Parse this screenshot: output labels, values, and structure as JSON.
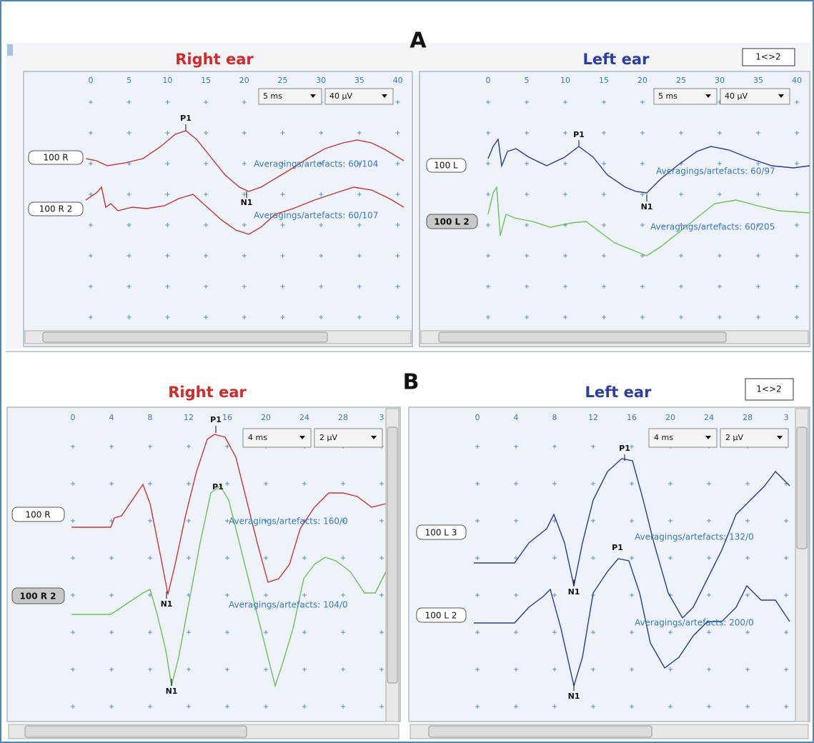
{
  "sections": [
    {
      "label": "A",
      "panels": [
        {
          "title": "Right ear",
          "ticks": [
            "0",
            "5",
            "10",
            "15",
            "20",
            "25",
            "30",
            "35",
            "40"
          ],
          "dropdowns": [
            "5 ms",
            "40 µV"
          ],
          "traces": [
            {
              "label": "100 R",
              "info": "Averagings/artefacts: 60/104"
            },
            {
              "label": "100 R 2",
              "info": "Averagings/artefacts: 60/107"
            }
          ],
          "markers": [
            "P1",
            "N1"
          ]
        },
        {
          "title": "Left ear",
          "button": "1<>2",
          "ticks": [
            "0",
            "5",
            "10",
            "15",
            "20",
            "25",
            "30",
            "35",
            "40"
          ],
          "dropdowns": [
            "5 ms",
            "40 µV"
          ],
          "traces": [
            {
              "label": "100 L",
              "info": "Averagings/artefacts: 60/97"
            },
            {
              "label": "100 L 2",
              "info": "Averagings/artefacts: 60/205"
            }
          ],
          "markers": [
            "P1",
            "N1"
          ]
        }
      ]
    },
    {
      "label": "B",
      "panels": [
        {
          "title": "Right ear",
          "ticks": [
            "0",
            "4",
            "8",
            "12",
            "16",
            "20",
            "24",
            "28",
            "3"
          ],
          "dropdowns": [
            "4 ms",
            "2 µV"
          ],
          "traces": [
            {
              "label": "100 R",
              "info": "Averagings/artefacts: 160/0"
            },
            {
              "label": "100 R 2",
              "info": "Averagings/artefacts: 104/0"
            }
          ],
          "markers": [
            "P1",
            "P1",
            "N1",
            "N1"
          ]
        },
        {
          "title": "Left ear",
          "button": "1<>2",
          "ticks": [
            "0",
            "4",
            "8",
            "12",
            "16",
            "20",
            "24",
            "28",
            "3"
          ],
          "dropdowns": [
            "4 ms",
            "2 µV"
          ],
          "traces": [
            {
              "label": "100 L 3",
              "info": "Averagings/artefacts: 132/0"
            },
            {
              "label": "100 L 2",
              "info": "Averagings/artefacts: 200/0"
            }
          ],
          "markers": [
            "P1",
            "P1",
            "N1",
            "N1"
          ]
        }
      ]
    }
  ]
}
